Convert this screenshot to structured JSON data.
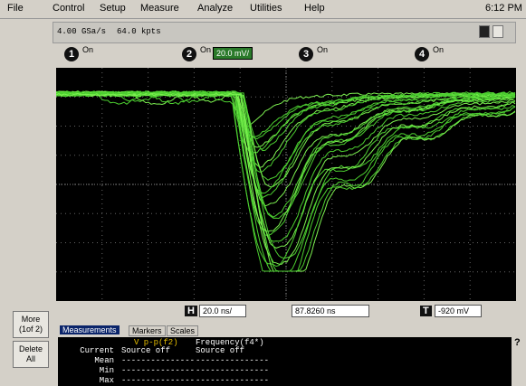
{
  "menu": {
    "items": [
      "File",
      "Control",
      "Setup",
      "Measure",
      "Analyze",
      "Utilities",
      "Help"
    ],
    "clock": "6:12 PM"
  },
  "acquisition": {
    "sample_rate": "4.00 GSa/s",
    "memory": "64.0 kpts"
  },
  "channels": [
    {
      "number": "1",
      "state": "On"
    },
    {
      "number": "2",
      "state": "On",
      "scale": "20.0 mV/"
    },
    {
      "number": "3",
      "state": "On"
    },
    {
      "number": "4",
      "state": "On"
    }
  ],
  "side_buttons": {
    "more": "More",
    "more_page": "(1of 2)",
    "delete": "Delete",
    "delete_sub": "All"
  },
  "horizontal": {
    "label": "H",
    "scale": "20.0 ns/",
    "position": "87.8260 ns"
  },
  "trigger": {
    "label": "T",
    "level": "-920 mV"
  },
  "tabs": [
    "Measurements",
    "Markers",
    "Scales"
  ],
  "help": "?",
  "measurements": {
    "columns": [
      "V p-p(f2)",
      "Frequency(f4*)"
    ],
    "rows": [
      {
        "label": "Current",
        "values": [
          "Source off",
          "Source off"
        ]
      },
      {
        "label": "Mean",
        "values": [
          "---------------",
          "---------------"
        ]
      },
      {
        "label": "Min",
        "values": [
          "---------------",
          "---------------"
        ]
      },
      {
        "label": "Max",
        "values": [
          "---------------",
          "---------------"
        ]
      }
    ]
  }
}
